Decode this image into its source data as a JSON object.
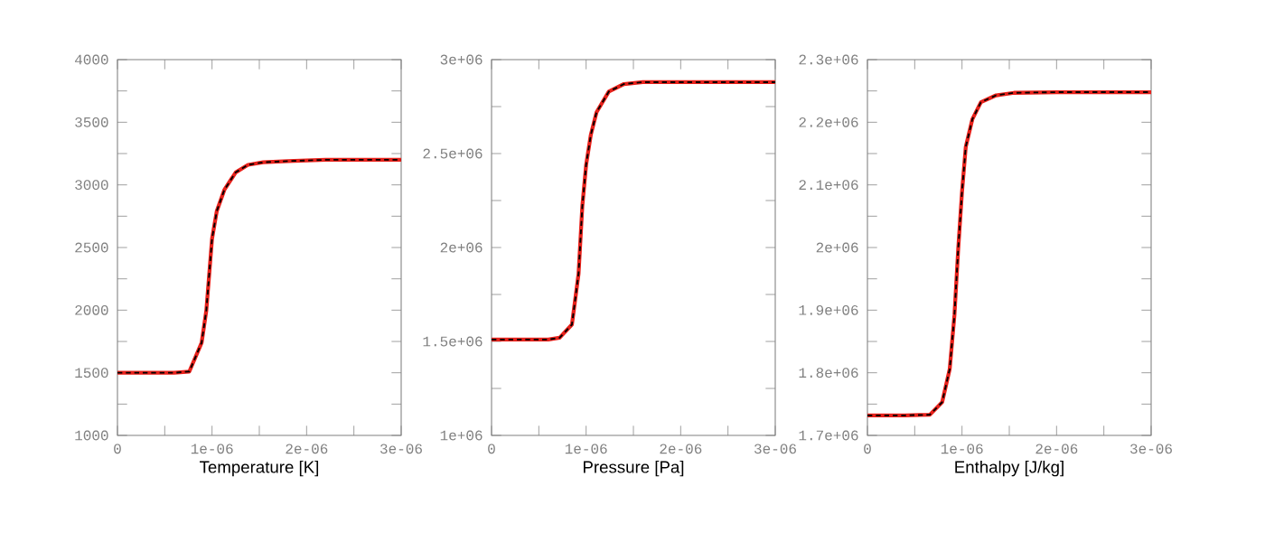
{
  "chart_data": [
    {
      "type": "line",
      "xlabel": "Temperature [K]",
      "x": [
        0,
        2e-07,
        4e-07,
        6e-07,
        7.6e-07,
        8.9e-07,
        9.4e-07,
        1e-06,
        1.05e-06,
        1.13e-06,
        1.25e-06,
        1.38e-06,
        1.54e-06,
        1.8e-06,
        2.2e-06,
        2.6e-06,
        3e-06
      ],
      "series": [
        {
          "color": "#e8211b",
          "line_style": "solid",
          "values": [
            1500,
            1500,
            1500,
            1500,
            1510,
            1740,
            2000,
            2570,
            2790,
            2960,
            3100,
            3160,
            3180,
            3190,
            3200,
            3200,
            3200
          ]
        },
        {
          "color": "#000000",
          "line_style": "dashed",
          "values": [
            1500,
            1500,
            1500,
            1500,
            1510,
            1740,
            2000,
            2570,
            2790,
            2960,
            3100,
            3160,
            3180,
            3190,
            3200,
            3200,
            3200
          ]
        }
      ],
      "xlim": [
        0,
        3e-06
      ],
      "ylim": [
        1000,
        4000
      ],
      "xticks": [
        0,
        {
          "value": 5e-07,
          "label": null
        },
        {
          "value": 1e-06,
          "label": "1e-06"
        },
        {
          "value": 1.5e-06,
          "label": null
        },
        {
          "value": 2e-06,
          "label": "2e-06"
        },
        {
          "value": 2.5e-06,
          "label": null
        },
        {
          "value": 3e-06,
          "label": "3e-06"
        }
      ],
      "yticks": [
        1000,
        {
          "value": 1250,
          "label": null
        },
        1500,
        {
          "value": 1750,
          "label": null
        },
        2000,
        {
          "value": 2250,
          "label": null
        },
        2500,
        {
          "value": 2750,
          "label": null
        },
        3000,
        {
          "value": 3250,
          "label": null
        },
        3500,
        {
          "value": 3750,
          "label": null
        },
        4000
      ],
      "grid": false
    },
    {
      "type": "line",
      "xlabel": "Pressure [Pa]",
      "x": [
        0,
        2e-07,
        4e-07,
        6e-07,
        7.2e-07,
        8.5e-07,
        9.2e-07,
        9.6e-07,
        1e-06,
        1.05e-06,
        1.11e-06,
        1.24e-06,
        1.4e-06,
        1.6e-06,
        2e-06,
        2.5e-06,
        3e-06
      ],
      "series": [
        {
          "color": "#e8211b",
          "line_style": "solid",
          "values": [
            1510000,
            1510000,
            1510000,
            1510000,
            1520000,
            1590000,
            1860000,
            2220000,
            2440000,
            2600000,
            2720000,
            2830000,
            2870000,
            2880000,
            2880000,
            2880000,
            2880000
          ]
        },
        {
          "color": "#000000",
          "line_style": "dashed",
          "values": [
            1510000,
            1510000,
            1510000,
            1510000,
            1520000,
            1590000,
            1860000,
            2220000,
            2440000,
            2600000,
            2720000,
            2830000,
            2870000,
            2880000,
            2880000,
            2880000,
            2880000
          ]
        }
      ],
      "xlim": [
        0,
        3e-06
      ],
      "ylim": [
        1000000,
        3000000
      ],
      "xticks": [
        0,
        {
          "value": 5e-07,
          "label": null
        },
        {
          "value": 1e-06,
          "label": "1e-06"
        },
        {
          "value": 1.5e-06,
          "label": null
        },
        {
          "value": 2e-06,
          "label": "2e-06"
        },
        {
          "value": 2.5e-06,
          "label": null
        },
        {
          "value": 3e-06,
          "label": "3e-06"
        }
      ],
      "yticks": [
        {
          "value": 1000000,
          "label": "1e+06"
        },
        {
          "value": 1250000,
          "label": null
        },
        {
          "value": 1500000,
          "label": "1.5e+06"
        },
        {
          "value": 1750000,
          "label": null
        },
        {
          "value": 2000000,
          "label": "2e+06"
        },
        {
          "value": 2250000,
          "label": null
        },
        {
          "value": 2500000,
          "label": "2.5e+06"
        },
        {
          "value": 2750000,
          "label": null
        },
        {
          "value": 3000000,
          "label": "3e+06"
        }
      ],
      "grid": false
    },
    {
      "type": "line",
      "xlabel": "Enthalpy [J/kg]",
      "x": [
        0,
        2e-07,
        4e-07,
        6.6e-07,
        7.9e-07,
        8.7e-07,
        9.2e-07,
        9.6e-07,
        1e-06,
        1.04e-06,
        1.11e-06,
        1.2e-06,
        1.36e-06,
        1.55e-06,
        2e-06,
        2.5e-06,
        3e-06
      ],
      "series": [
        {
          "color": "#e8211b",
          "line_style": "solid",
          "values": [
            1732000,
            1732000,
            1732000,
            1733000,
            1753000,
            1806000,
            1892000,
            1998000,
            2089000,
            2161000,
            2205000,
            2232000,
            2243000,
            2247000,
            2248000,
            2248000,
            2248000
          ]
        },
        {
          "color": "#000000",
          "line_style": "dashed",
          "values": [
            1732000,
            1732000,
            1732000,
            1733000,
            1753000,
            1806000,
            1892000,
            1998000,
            2089000,
            2161000,
            2205000,
            2232000,
            2243000,
            2247000,
            2248000,
            2248000,
            2248000
          ]
        }
      ],
      "xlim": [
        0,
        3e-06
      ],
      "ylim": [
        1700000,
        2300000
      ],
      "xticks": [
        0,
        {
          "value": 5e-07,
          "label": null
        },
        {
          "value": 1e-06,
          "label": "1e-06"
        },
        {
          "value": 1.5e-06,
          "label": null
        },
        {
          "value": 2e-06,
          "label": "2e-06"
        },
        {
          "value": 2.5e-06,
          "label": null
        },
        {
          "value": 3e-06,
          "label": "3e-06"
        }
      ],
      "yticks": [
        {
          "value": 1700000,
          "label": "1.7e+06"
        },
        {
          "value": 1750000,
          "label": null
        },
        {
          "value": 1800000,
          "label": "1.8e+06"
        },
        {
          "value": 1850000,
          "label": null
        },
        {
          "value": 1900000,
          "label": "1.9e+06"
        },
        {
          "value": 1950000,
          "label": null
        },
        {
          "value": 2000000,
          "label": "2e+06"
        },
        {
          "value": 2050000,
          "label": null
        },
        {
          "value": 2100000,
          "label": "2.1e+06"
        },
        {
          "value": 2150000,
          "label": null
        },
        {
          "value": 2200000,
          "label": "2.2e+06"
        },
        {
          "value": 2250000,
          "label": null
        },
        {
          "value": 2300000,
          "label": "2.3e+06"
        }
      ],
      "grid": false
    }
  ]
}
